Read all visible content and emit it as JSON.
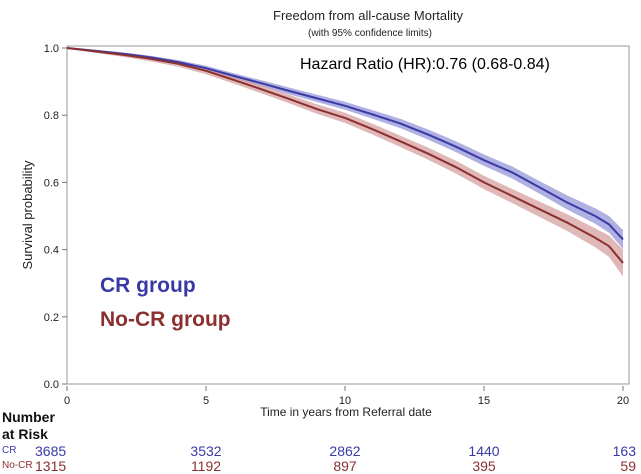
{
  "chart_data": {
    "type": "line",
    "title": "Freedom from all-cause Mortality",
    "subtitle": "(with 95% confidence limits)",
    "xlabel": "Time in years from Referral date",
    "ylabel": "Survival probability",
    "xlim": [
      0,
      20
    ],
    "ylim": [
      0.0,
      1.0
    ],
    "x_ticks": [
      0,
      5,
      10,
      15,
      20
    ],
    "y_ticks": [
      0.0,
      0.2,
      0.4,
      0.6,
      0.8,
      1.0
    ],
    "y_tick_labels": [
      "0.0",
      "0.2",
      "0.4",
      "0.6",
      "0.8",
      "1.0"
    ],
    "grid": false,
    "annotation": "Hazard Ratio (HR):0.76 (0.68-0.84)",
    "series": [
      {
        "name": "CR group",
        "color": "#3a3aa6",
        "band_color": "#8f8fd6",
        "x": [
          0,
          1,
          2,
          3,
          4,
          5,
          6,
          7,
          8,
          9,
          10,
          11,
          12,
          13,
          14,
          15,
          16,
          17,
          18,
          19,
          19.5,
          20
        ],
        "y": [
          1.0,
          0.992,
          0.983,
          0.972,
          0.958,
          0.94,
          0.917,
          0.895,
          0.872,
          0.85,
          0.828,
          0.802,
          0.775,
          0.742,
          0.706,
          0.666,
          0.63,
          0.585,
          0.54,
          0.5,
          0.475,
          0.43
        ],
        "ci_halfwidth": [
          0,
          0.003,
          0.004,
          0.005,
          0.006,
          0.007,
          0.008,
          0.009,
          0.01,
          0.011,
          0.012,
          0.013,
          0.014,
          0.015,
          0.016,
          0.017,
          0.018,
          0.019,
          0.021,
          0.023,
          0.025,
          0.028
        ]
      },
      {
        "name": "No-CR group",
        "color": "#8b2f2f",
        "band_color": "#d39a9a",
        "x": [
          0,
          1,
          2,
          3,
          4,
          5,
          6,
          7,
          8,
          9,
          10,
          11,
          12,
          13,
          14,
          15,
          16,
          17,
          18,
          19,
          19.5,
          20
        ],
        "y": [
          1.0,
          0.99,
          0.98,
          0.968,
          0.953,
          0.932,
          0.905,
          0.877,
          0.848,
          0.818,
          0.792,
          0.758,
          0.722,
          0.685,
          0.645,
          0.6,
          0.56,
          0.52,
          0.48,
          0.435,
          0.41,
          0.36
        ],
        "ci_halfwidth": [
          0,
          0.004,
          0.006,
          0.008,
          0.009,
          0.01,
          0.011,
          0.012,
          0.013,
          0.014,
          0.015,
          0.016,
          0.017,
          0.018,
          0.019,
          0.02,
          0.021,
          0.023,
          0.025,
          0.028,
          0.032,
          0.04
        ]
      }
    ],
    "risk_table": {
      "header_line1": "Number",
      "header_line2": "at Risk",
      "rows": [
        {
          "label": "CR",
          "color": "#3a3aa6",
          "times": [
            0,
            5,
            10,
            15,
            20
          ],
          "values": [
            "3685",
            "3532",
            "2862",
            "1440",
            "163"
          ]
        },
        {
          "label": "No-CR",
          "color": "#8b2f2f",
          "times": [
            0,
            5,
            10,
            15,
            20
          ],
          "values": [
            "1315",
            "1192",
            "897",
            "395",
            "59"
          ]
        }
      ]
    }
  }
}
